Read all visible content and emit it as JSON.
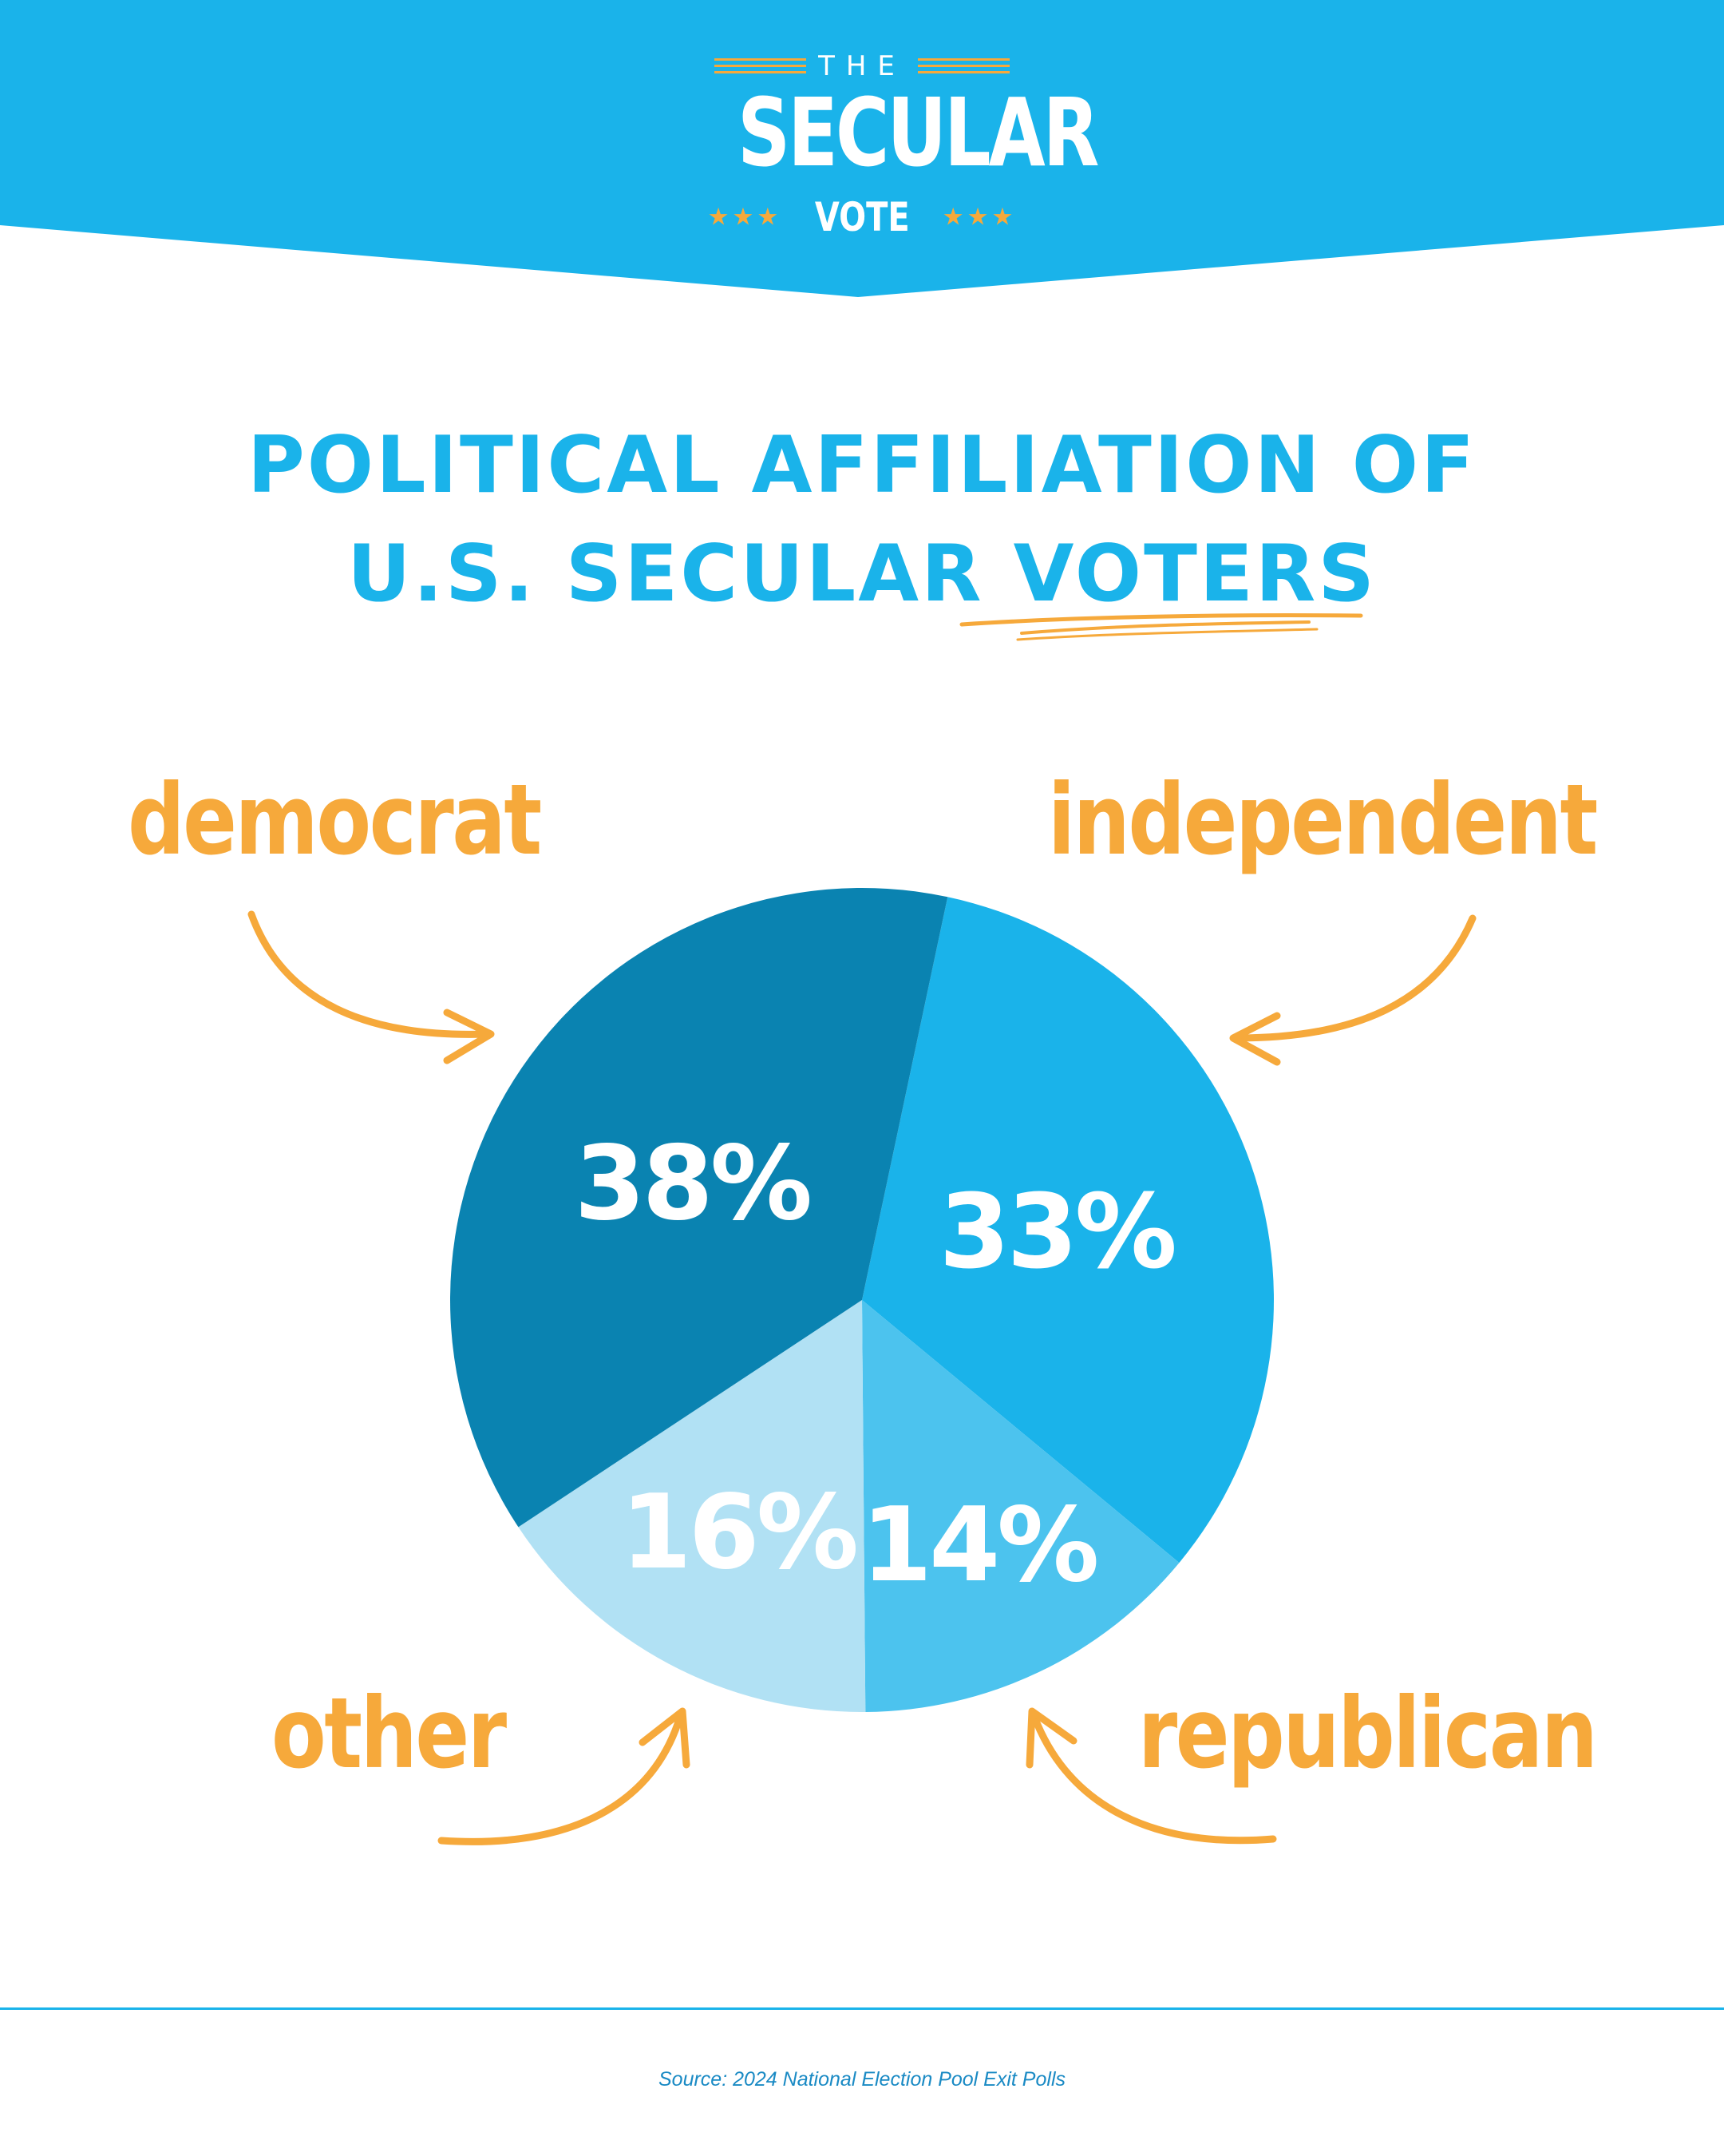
{
  "brand": {
    "logo_the": "THE",
    "logo_name": "SECULAR",
    "logo_vote": "VOTE",
    "logo_stars": "★★★",
    "colors": {
      "banner": "#1ab3ea",
      "accent": "#f6a93b"
    }
  },
  "title": {
    "line1": "POLITICAL AFFILIATION OF",
    "line2": "U.S. SECULAR VOTERS"
  },
  "chart_data": {
    "type": "pie",
    "title": "POLITICAL AFFILIATION OF U.S. SECULAR VOTERS",
    "slices": [
      {
        "name": "independent",
        "value": 33,
        "label": "33%",
        "color": "#1ab3ea"
      },
      {
        "name": "republican",
        "value": 14,
        "label": "14%",
        "color": "#4cc3ee"
      },
      {
        "name": "other",
        "value": 16,
        "label": "16%",
        "color": "#b1e1f4"
      },
      {
        "name": "democrat",
        "value": 38,
        "label": "38%",
        "color": "#0a83b1"
      }
    ],
    "units": "%"
  },
  "source": "Source: 2024 National Election Pool Exit Polls"
}
